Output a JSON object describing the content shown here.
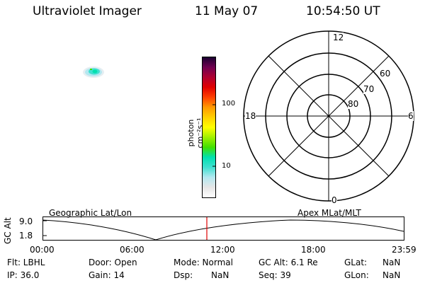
{
  "header": {
    "instrument": "Ultraviolet Imager",
    "date": "11 May 07",
    "time": "10:54:50 UT"
  },
  "colorbar": {
    "label": "photon cm⁻²s⁻¹",
    "ticks": [
      "100",
      "10"
    ],
    "colors": [
      "#ffffff",
      "#e6e6e6",
      "#b4e8f0",
      "#40e0d0",
      "#00e0b0",
      "#40e000",
      "#a0f000",
      "#ffff00",
      "#ffd000",
      "#ff9900",
      "#ff4000",
      "#e00000",
      "#b00030",
      "#700050",
      "#1a0030"
    ]
  },
  "polar": {
    "mlt_labels": [
      "12",
      "18",
      "6",
      "0"
    ],
    "mlat_labels": [
      "60",
      "70",
      "80"
    ]
  },
  "track": {
    "left_label": "Geographic Lat/Lon",
    "right_label": "Apex MLat/MLT",
    "axis_label": "GC Alt",
    "y_ticks": [
      "9.0",
      "1.8"
    ],
    "x_ticks": [
      "00:00",
      "06:00",
      "12:00",
      "18:00",
      "23:59"
    ],
    "marker_color": "#e00000"
  },
  "info": {
    "flt": "Flt: LBHL",
    "ip": "IP: 36.0",
    "door": "Door: Open",
    "gain": "Gain: 14",
    "mode": "Mode: Normal",
    "dsp": "Dsp:",
    "dsp_val": "NaN",
    "gc_alt": "GC Alt: 6.1 Re",
    "seq": "Seq: 39",
    "glat": "GLat:",
    "glat_val": "NaN",
    "glon": "GLon:",
    "glon_val": "NaN"
  }
}
